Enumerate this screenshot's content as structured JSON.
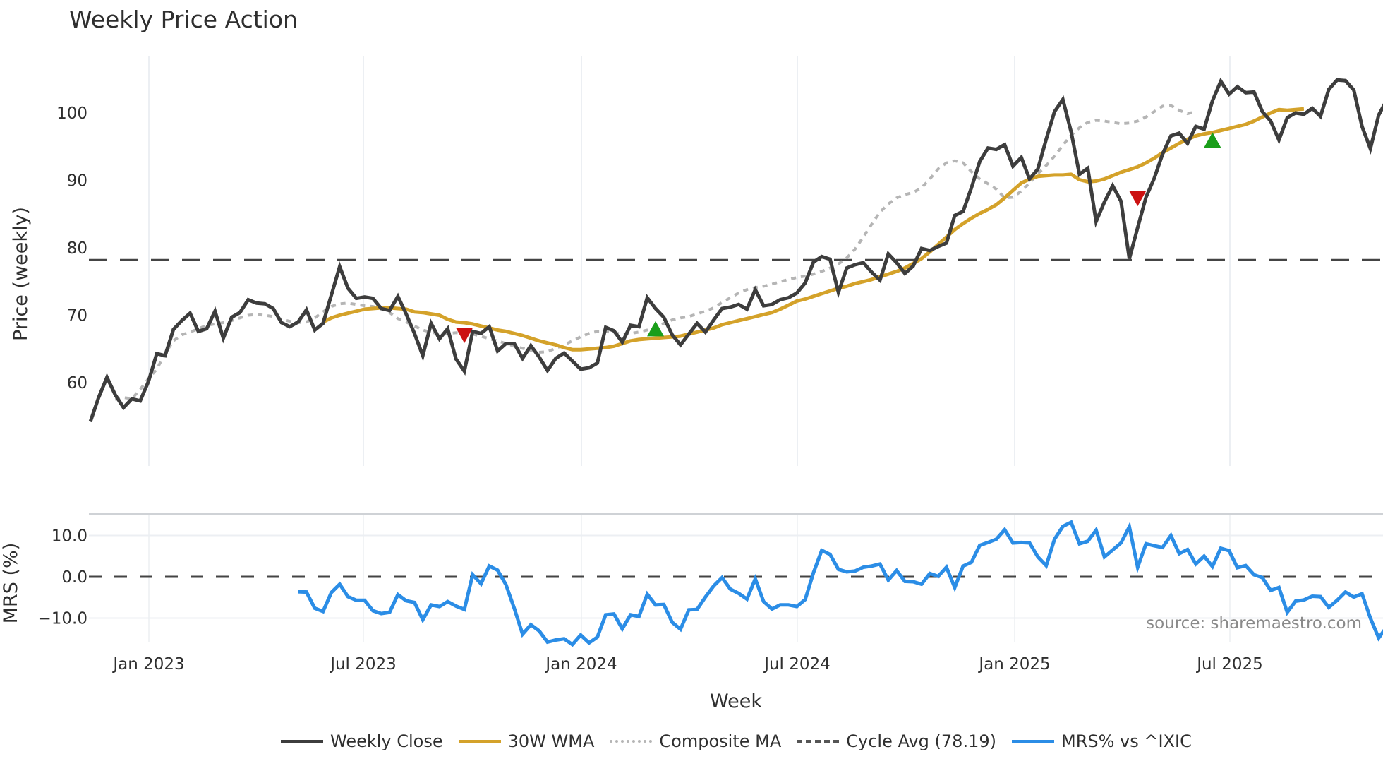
{
  "title": "Weekly Price Action",
  "colors": {
    "close": "#3d3d3d",
    "wma": "#d4a22a",
    "composite": "#b5b5b5",
    "cycle": "#444444",
    "mrs": "#2b8de6",
    "buy_marker": "#1a9e1a",
    "sell_marker": "#cc1111",
    "grid": "#eceff3"
  },
  "price_panel": {
    "ylabel": "Price (weekly)",
    "yticks": [
      "60",
      "70",
      "80",
      "90",
      "100"
    ],
    "cycle_avg": 78.19
  },
  "mrs_panel": {
    "ylabel": "MRS (%)",
    "yticks": [
      "−10.0",
      "0.0",
      "10.0"
    ]
  },
  "xaxis": {
    "label": "Week",
    "ticks": [
      "Jan 2023",
      "Jul 2023",
      "Jan 2024",
      "Jul 2024",
      "Jan 2025",
      "Jul 2025"
    ]
  },
  "source": "source: sharemaestro.com",
  "legend": [
    {
      "label": "Weekly Close",
      "style": "solid",
      "color": "#3d3d3d"
    },
    {
      "label": "30W WMA",
      "style": "solid",
      "color": "#d4a22a"
    },
    {
      "label": "Composite MA",
      "style": "dotted",
      "color": "#b5b5b5"
    },
    {
      "label": "Cycle Avg (78.19)",
      "style": "dashed",
      "color": "#444444"
    },
    {
      "label": "MRS% vs ^IXIC",
      "style": "solid",
      "color": "#2b8de6"
    }
  ],
  "chart_data": [
    {
      "type": "line",
      "title": "Weekly Price Action",
      "xlabel": "Week",
      "ylabel": "Price (weekly)",
      "ylim": [
        52,
        107
      ],
      "x_ticks": [
        "Jan 2023",
        "Jul 2023",
        "Jan 2024",
        "Jul 2024",
        "Jan 2025",
        "Jul 2025"
      ],
      "x_start": "2022-11",
      "x_interval": "weekly",
      "series": [
        {
          "name": "Weekly Close",
          "values": [
            54.2,
            57.8,
            60.8,
            58.2,
            56.3,
            57.6,
            57.3,
            60.2,
            64.3,
            64.0,
            67.9,
            69.2,
            70.3,
            67.6,
            68.0,
            70.6,
            66.6,
            69.7,
            70.4,
            72.3,
            71.8,
            71.7,
            71.0,
            68.9,
            68.3,
            69.0,
            70.8,
            67.8,
            68.8,
            73.0,
            77.2,
            74.0,
            72.5,
            72.7,
            72.5,
            71.0,
            70.7,
            72.8,
            70.2,
            67.3,
            64.0,
            68.8,
            66.5,
            68.0,
            63.5,
            61.7,
            67.6,
            67.3,
            68.3,
            64.7,
            65.8,
            65.8,
            63.6,
            65.5,
            63.8,
            61.8,
            63.6,
            64.4,
            63.2,
            62.0,
            62.2,
            62.9,
            68.2,
            67.7,
            66.0,
            68.5,
            68.3,
            72.6,
            71.0,
            69.7,
            67.1,
            65.6,
            67.2,
            68.8,
            67.5,
            69.3,
            71.0,
            71.2,
            71.6,
            70.9,
            73.8,
            71.4,
            71.6,
            72.3,
            72.6,
            73.3,
            74.8,
            77.9,
            78.7,
            78.3,
            73.4,
            77.0,
            77.5,
            77.8,
            76.4,
            75.2,
            79.1,
            77.8,
            76.2,
            77.3,
            79.9,
            79.6,
            80.2,
            80.7,
            84.8,
            85.4,
            88.9,
            92.8,
            94.8,
            94.6,
            95.3,
            92.1,
            93.4,
            90.2,
            91.7,
            96.1,
            100.2,
            102.0,
            97.2,
            90.9,
            91.8,
            83.9,
            86.8,
            89.2,
            86.9,
            78.4,
            83.0,
            87.5,
            90.3,
            93.9,
            96.6,
            97.0,
            95.5,
            98.0,
            97.6,
            101.8,
            104.7,
            102.8,
            103.9,
            103.0,
            103.1,
            100.2,
            98.8,
            96.0,
            99.3,
            100.0,
            99.8,
            100.7,
            99.5,
            103.5,
            104.9,
            104.8,
            103.4,
            98.0,
            94.7,
            99.7,
            102.0
          ]
        },
        {
          "name": "30W WMA",
          "start_index": 28,
          "values": [
            69.0,
            69.6,
            70.0,
            70.3,
            70.6,
            70.9,
            71.0,
            71.1,
            71.1,
            71.0,
            70.9,
            70.5,
            70.4,
            70.2,
            70.0,
            69.4,
            69.0,
            68.9,
            68.7,
            68.4,
            68.1,
            67.8,
            67.6,
            67.3,
            67.0,
            66.6,
            66.2,
            65.9,
            65.6,
            65.2,
            64.9,
            64.9,
            65.0,
            65.1,
            65.2,
            65.4,
            65.8,
            66.2,
            66.4,
            66.5,
            66.6,
            66.7,
            66.8,
            66.9,
            67.2,
            67.5,
            67.8,
            68.1,
            68.6,
            68.9,
            69.2,
            69.5,
            69.8,
            70.1,
            70.4,
            70.9,
            71.5,
            72.1,
            72.4,
            72.8,
            73.2,
            73.6,
            74.0,
            74.3,
            74.7,
            75.0,
            75.3,
            75.7,
            76.1,
            76.5,
            77.0,
            77.7,
            78.4,
            79.4,
            80.5,
            81.6,
            82.7,
            83.6,
            84.4,
            85.1,
            85.7,
            86.4,
            87.4,
            88.5,
            89.6,
            90.2,
            90.6,
            90.7,
            90.8,
            90.8,
            90.9,
            90.1,
            89.8,
            89.9,
            90.2,
            90.7,
            91.2,
            91.6,
            92.0,
            92.6,
            93.3,
            94.1,
            94.8,
            95.5,
            96.1,
            96.6,
            96.9,
            97.1,
            97.4,
            97.7,
            98.0,
            98.3,
            98.8,
            99.4,
            100.0,
            100.5,
            100.4,
            100.5,
            100.6
          ]
        },
        {
          "name": "Composite MA",
          "start_index": 3,
          "values": [
            57.5,
            57.8,
            57.6,
            59.0,
            60.6,
            62.0,
            64.3,
            66.2,
            67.1,
            67.5,
            68.0,
            68.5,
            68.7,
            68.9,
            69.2,
            69.6,
            70.0,
            70.1,
            70.0,
            69.8,
            69.4,
            69.1,
            68.9,
            69.0,
            69.6,
            70.5,
            71.3,
            71.7,
            71.8,
            71.6,
            71.4,
            71.3,
            71.0,
            70.4,
            69.5,
            69.0,
            68.4,
            67.8,
            67.5,
            67.2,
            67.3,
            67.4,
            67.3,
            67.2,
            66.9,
            66.5,
            66.2,
            65.8,
            65.4,
            65.1,
            64.8,
            64.5,
            64.6,
            65.1,
            65.6,
            66.2,
            66.8,
            67.3,
            67.6,
            67.6,
            67.4,
            67.2,
            67.3,
            67.5,
            67.8,
            68.3,
            68.8,
            69.3,
            69.6,
            69.8,
            70.2,
            70.6,
            71.1,
            71.9,
            72.6,
            73.3,
            73.8,
            74.1,
            74.3,
            74.6,
            75.0,
            75.3,
            75.6,
            75.8,
            76.1,
            76.5,
            77.0,
            77.6,
            78.5,
            79.8,
            81.6,
            83.5,
            85.3,
            86.5,
            87.4,
            87.9,
            88.2,
            88.9,
            90.2,
            91.7,
            92.6,
            92.9,
            92.6,
            91.3,
            90.2,
            89.5,
            88.7,
            87.4,
            87.5,
            88.4,
            89.6,
            91.0,
            92.2,
            93.6,
            95.2,
            96.7,
            97.8,
            98.6,
            98.9,
            98.8,
            98.6,
            98.4,
            98.5,
            98.8,
            99.4,
            100.2,
            101.0,
            101.1,
            100.4,
            99.9,
            100.2
          ]
        },
        {
          "name": "Cycle Avg (78.19)",
          "values": [
            78.19
          ]
        }
      ],
      "markers": [
        {
          "type": "sell",
          "label": "red triangle down",
          "index": 45,
          "value": 67.0
        },
        {
          "type": "buy",
          "label": "green triangle up",
          "index": 68,
          "value": 68.0
        },
        {
          "type": "sell",
          "label": "red triangle down",
          "index": 126,
          "value": 87.3
        },
        {
          "type": "buy",
          "label": "green triangle up",
          "index": 135,
          "value": 96.0
        }
      ],
      "grid": true,
      "legend_position": "bottom"
    },
    {
      "type": "line",
      "ylabel": "MRS (%)",
      "ylim": [
        -18,
        16
      ],
      "reference_line": 0.0,
      "series": [
        {
          "name": "MRS% vs ^IXIC",
          "start_index": 25,
          "values": [
            -3.6,
            -3.7,
            -7.6,
            -8.4,
            -3.8,
            -1.8,
            -4.8,
            -5.7,
            -5.7,
            -8.2,
            -8.9,
            -8.6,
            -4.3,
            -5.8,
            -6.2,
            -10.4,
            -6.8,
            -7.2,
            -6.0,
            -7.1,
            -7.9,
            0.5,
            -1.7,
            2.6,
            1.6,
            -1.9,
            -7.6,
            -13.9,
            -11.6,
            -13.1,
            -15.8,
            -15.3,
            -15.0,
            -16.4,
            -14.1,
            -16.0,
            -14.6,
            -9.2,
            -9.0,
            -12.6,
            -9.2,
            -9.6,
            -4.2,
            -6.8,
            -6.7,
            -11.0,
            -12.7,
            -8.0,
            -7.9,
            -4.9,
            -2.2,
            -0.2,
            -3.0,
            -4.0,
            -5.4,
            -0.5,
            -6.0,
            -7.8,
            -6.8,
            -6.8,
            -7.2,
            -5.5,
            1.0,
            6.4,
            5.4,
            1.8,
            1.2,
            1.4,
            2.3,
            2.6,
            3.1,
            -0.8,
            1.5,
            -1.1,
            -1.2,
            -1.8,
            0.8,
            0.1,
            2.3,
            -2.6,
            2.6,
            3.5,
            7.6,
            8.3,
            9.1,
            11.4,
            8.2,
            8.3,
            8.2,
            4.8,
            2.7,
            9.1,
            12.2,
            13.2,
            8.0,
            8.6,
            11.3,
            4.8,
            6.5,
            8.2,
            12.1,
            2.3,
            8.0,
            7.5,
            7.1,
            10.0,
            5.6,
            6.6,
            3.1,
            5.0,
            2.5,
            6.9,
            6.3,
            2.2,
            2.7,
            0.5,
            -0.2,
            -3.3,
            -2.6,
            -8.6,
            -5.9,
            -5.6,
            -4.7,
            -4.8,
            -7.4,
            -5.7,
            -3.7,
            -4.9,
            -4.1,
            -10.0,
            -14.8,
            -12.0,
            -7.0
          ]
        }
      ]
    }
  ]
}
